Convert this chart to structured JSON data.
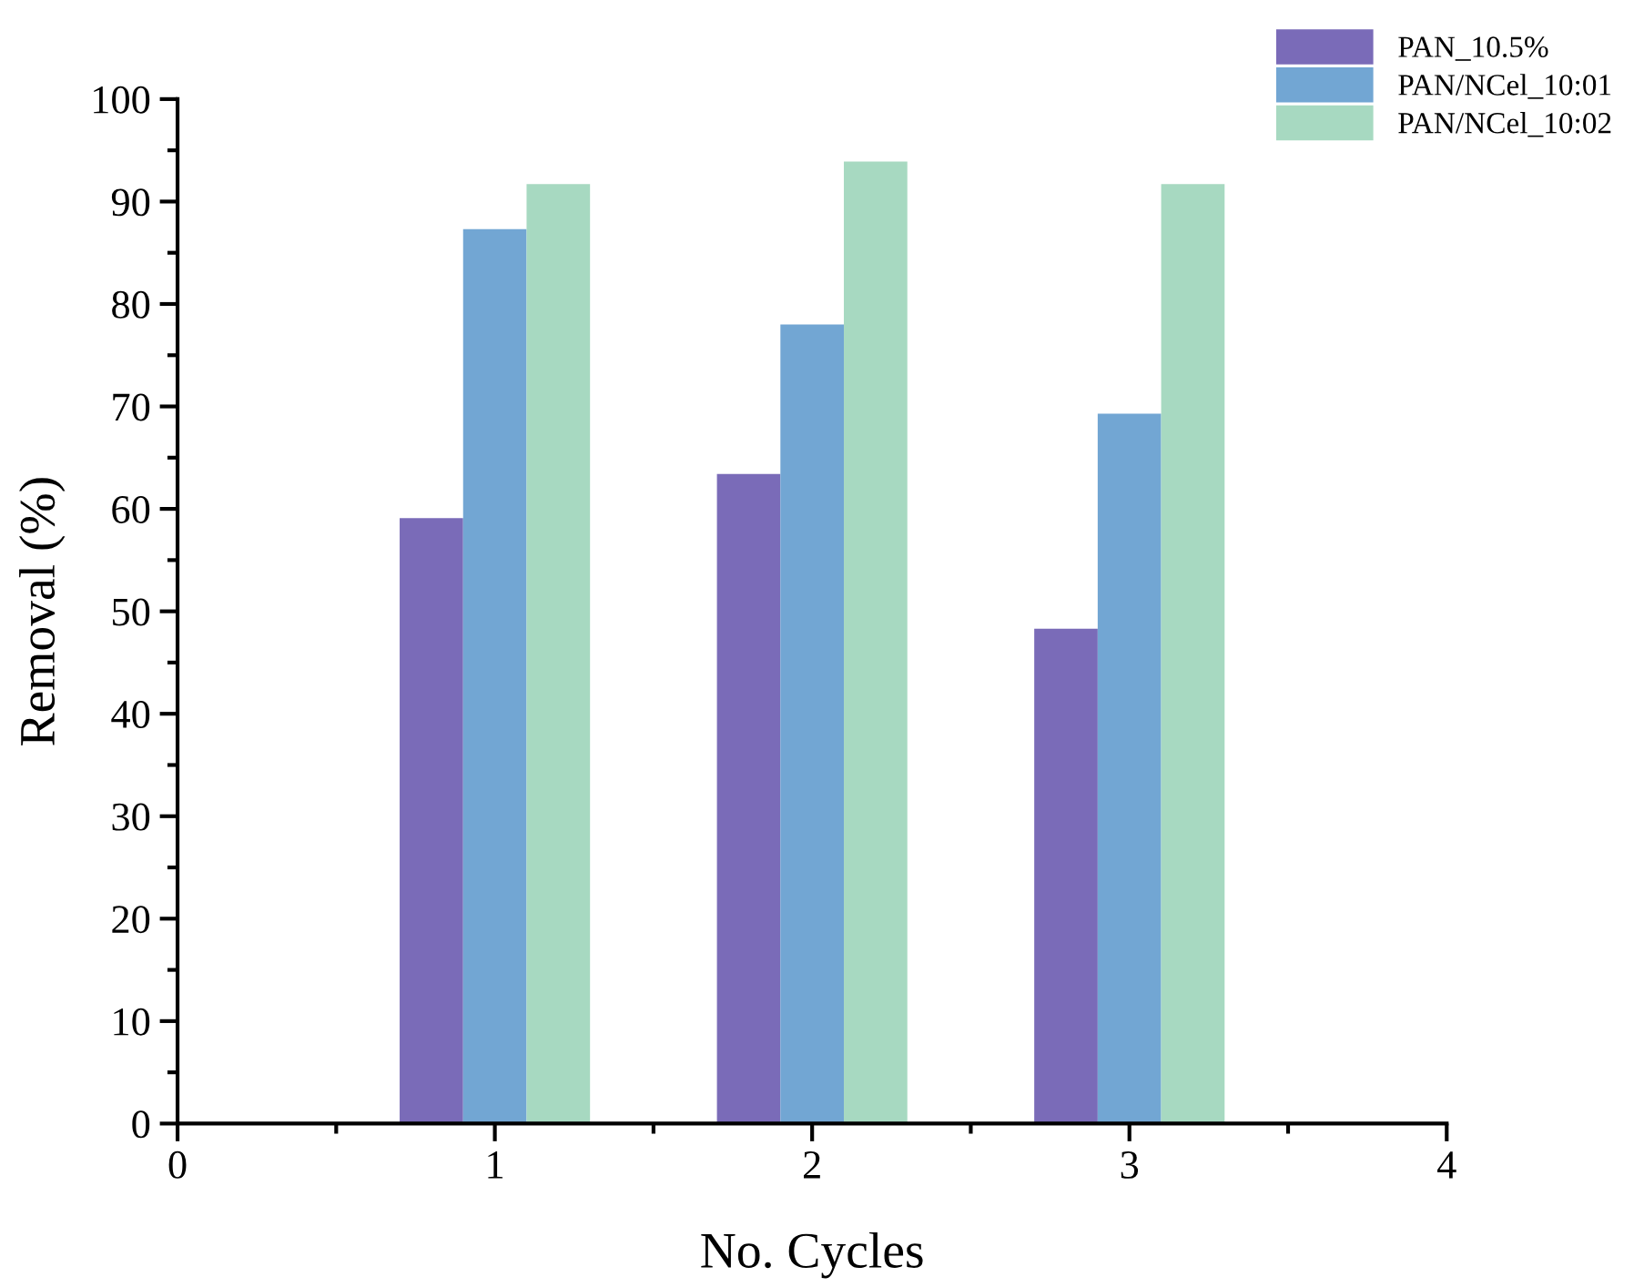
{
  "chart_data": {
    "type": "bar",
    "xlabel": "No. Cycles",
    "ylabel": "Removal (%)",
    "x": [
      1,
      2,
      3
    ],
    "series": [
      {
        "name": "PAN_10.5%",
        "color": "#7a6bb8",
        "values": [
          59.1,
          63.4,
          48.3
        ]
      },
      {
        "name": "PAN/NCel_10:01",
        "color": "#72a6d3",
        "values": [
          87.3,
          78.0,
          69.3
        ]
      },
      {
        "name": "PAN/NCel_10:02",
        "color": "#a7d9c1",
        "values": [
          91.7,
          93.9,
          91.7
        ]
      }
    ],
    "xlim": [
      0,
      4
    ],
    "xticks": [
      0,
      {
        "value": 0.5,
        "label": null
      },
      1,
      {
        "value": 1.5,
        "label": null
      },
      2,
      {
        "value": 2.5,
        "label": null
      },
      3,
      {
        "value": 3.5,
        "label": null
      },
      4
    ],
    "ylim": [
      0,
      100
    ],
    "yticks": [
      0,
      {
        "value": 5,
        "label": null
      },
      10,
      {
        "value": 15,
        "label": null
      },
      20,
      {
        "value": 25,
        "label": null
      },
      30,
      {
        "value": 35,
        "label": null
      },
      40,
      {
        "value": 45,
        "label": null
      },
      50,
      {
        "value": 55,
        "label": null
      },
      60,
      {
        "value": 65,
        "label": null
      },
      70,
      {
        "value": 75,
        "label": null
      },
      80,
      {
        "value": 85,
        "label": null
      },
      90,
      {
        "value": 95,
        "label": null
      },
      100
    ],
    "grid": false,
    "legend": "top right"
  }
}
